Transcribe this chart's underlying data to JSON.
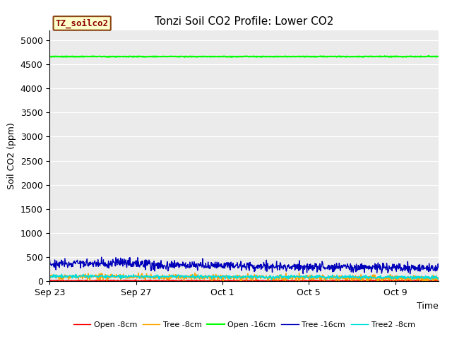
{
  "title": "Tonzi Soil CO2 Profile: Lower CO2",
  "xlabel": "Time",
  "ylabel": "Soil CO2 (ppm)",
  "ylim": [
    0,
    5200
  ],
  "yticks": [
    0,
    500,
    1000,
    1500,
    2000,
    2500,
    3000,
    3500,
    4000,
    4500,
    5000
  ],
  "xtick_labels": [
    "Sep 23",
    "Sep 27",
    "Oct 1",
    "Oct 5",
    "Oct 9"
  ],
  "legend_box_label": "TZ_soilco2",
  "legend_box_bg": "#ffffcc",
  "legend_box_edge": "#8B4513",
  "background_color": "#ebebeb",
  "fig_bg": "#ffffff",
  "grid_color": "#ffffff",
  "lines": [
    {
      "key": "open_8cm",
      "label": "Open -8cm",
      "color": "#ff0000",
      "base": 15,
      "noise_std": 6,
      "lw": 1.0
    },
    {
      "key": "tree_8cm",
      "label": "Tree -8cm",
      "color": "#ffa500",
      "base": 85,
      "noise_std": 30,
      "lw": 1.0
    },
    {
      "key": "open_16cm",
      "label": "Open -16cm",
      "color": "#00ff00",
      "base": 4660,
      "noise_std": 4,
      "lw": 1.5
    },
    {
      "key": "tree_16cm",
      "label": "Tree -16cm",
      "color": "#0000bb",
      "base": 340,
      "noise_std": 45,
      "lw": 1.0
    },
    {
      "key": "tree2_8cm",
      "label": "Tree2 -8cm",
      "color": "#00dddd",
      "base": 95,
      "noise_std": 18,
      "lw": 1.0
    }
  ],
  "title_fontsize": 11,
  "axis_label_fontsize": 9,
  "tick_fontsize": 9,
  "n_points": 1000,
  "days_total": 18
}
